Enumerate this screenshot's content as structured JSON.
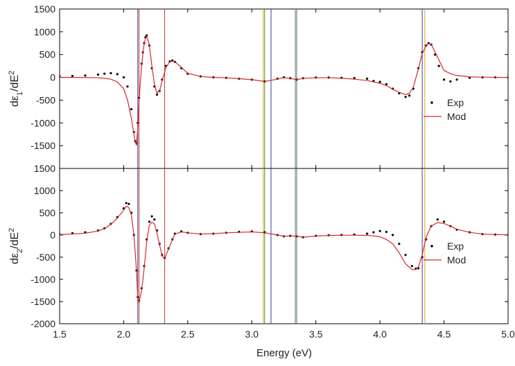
{
  "chart_data": {
    "type": "line",
    "xlabel": "Energy (eV)",
    "xlim": [
      1.5,
      5.0
    ],
    "x_ticks": [
      "1.5",
      "2.0",
      "2.5",
      "3.0",
      "3.5",
      "4.0",
      "4.5",
      "5.0"
    ],
    "colors": {
      "exp": "#000000",
      "mod": "#d62728",
      "vline_blue": "#3b3b9e",
      "vline_red": "#c0392b",
      "vline_orange": "#e8a317",
      "vline_green": "#3c9a3c",
      "vline_purple": "#7b4fa8"
    },
    "vertical_lines": [
      {
        "x": 2.11,
        "color": "#3b3b9e"
      },
      {
        "x": 2.12,
        "color": "#c0392b"
      },
      {
        "x": 2.32,
        "color": "#c0392b"
      },
      {
        "x": 3.09,
        "color": "#e8a317"
      },
      {
        "x": 3.1,
        "color": "#3c9a3c"
      },
      {
        "x": 3.15,
        "color": "#3b3b9e"
      },
      {
        "x": 3.34,
        "color": "#3c9a3c"
      },
      {
        "x": 3.35,
        "color": "#7b4fa8"
      },
      {
        "x": 4.33,
        "color": "#3b3b9e"
      },
      {
        "x": 4.35,
        "color": "#e8a317"
      }
    ],
    "panels": [
      {
        "ylabel": "dε1/dE2",
        "ylim": [
          -2000,
          1500
        ],
        "y_ticks": [
          "1500",
          "1000",
          "500",
          "0",
          "-500",
          "-1000",
          "-1500"
        ],
        "legend": {
          "exp": "Exp",
          "mod": "Mod"
        },
        "series": [
          {
            "name": "Exp",
            "x": [
              1.5,
              1.6,
              1.7,
              1.8,
              1.85,
              1.9,
              1.95,
              2.0,
              2.03,
              2.06,
              2.08,
              2.09,
              2.1,
              2.11,
              2.12,
              2.14,
              2.15,
              2.16,
              2.17,
              2.18,
              2.2,
              2.22,
              2.24,
              2.26,
              2.28,
              2.3,
              2.33,
              2.36,
              2.38,
              2.4,
              2.45,
              2.5,
              2.6,
              2.7,
              2.8,
              2.9,
              3.0,
              3.1,
              3.2,
              3.25,
              3.3,
              3.35,
              3.4,
              3.5,
              3.6,
              3.7,
              3.8,
              3.9,
              3.95,
              4.0,
              4.05,
              4.1,
              4.15,
              4.2,
              4.23,
              4.26,
              4.3,
              4.33,
              4.36,
              4.38,
              4.4,
              4.43,
              4.46,
              4.5,
              4.55,
              4.6,
              4.7,
              4.8,
              4.9,
              5.0
            ],
            "y": [
              20,
              30,
              40,
              60,
              80,
              90,
              70,
              0,
              -200,
              -700,
              -1200,
              -1400,
              -1450,
              -1000,
              -450,
              300,
              550,
              750,
              880,
              920,
              700,
              200,
              -200,
              -380,
              -300,
              -50,
              250,
              350,
              370,
              340,
              200,
              80,
              20,
              0,
              -10,
              -30,
              -50,
              -90,
              -30,
              0,
              -20,
              -50,
              -20,
              -5,
              -5,
              -10,
              -15,
              -30,
              -80,
              -100,
              -150,
              -250,
              -350,
              -430,
              -400,
              -250,
              200,
              550,
              700,
              750,
              720,
              500,
              250,
              -50,
              -90,
              -50,
              -10,
              0,
              0,
              0
            ]
          },
          {
            "name": "Mod",
            "x": [
              1.5,
              1.6,
              1.7,
              1.8,
              1.85,
              1.9,
              1.95,
              2.0,
              2.03,
              2.06,
              2.08,
              2.09,
              2.1,
              2.11,
              2.12,
              2.14,
              2.15,
              2.16,
              2.17,
              2.18,
              2.2,
              2.22,
              2.24,
              2.26,
              2.28,
              2.3,
              2.33,
              2.36,
              2.38,
              2.4,
              2.45,
              2.5,
              2.6,
              2.7,
              2.8,
              2.9,
              3.0,
              3.1,
              3.2,
              3.25,
              3.3,
              3.35,
              3.4,
              3.5,
              3.6,
              3.7,
              3.8,
              3.9,
              3.95,
              4.0,
              4.05,
              4.1,
              4.15,
              4.2,
              4.23,
              4.26,
              4.3,
              4.33,
              4.36,
              4.38,
              4.4,
              4.43,
              4.46,
              4.5,
              4.55,
              4.6,
              4.7,
              4.8,
              4.9,
              5.0
            ],
            "y": [
              0,
              0,
              -5,
              -10,
              -20,
              -40,
              -100,
              -250,
              -500,
              -900,
              -1250,
              -1420,
              -1480,
              -1100,
              -500,
              250,
              520,
              740,
              860,
              900,
              720,
              250,
              -150,
              -350,
              -300,
              -80,
              220,
              340,
              360,
              340,
              220,
              90,
              20,
              0,
              -10,
              -30,
              -50,
              -90,
              -40,
              -5,
              -25,
              -50,
              -25,
              -10,
              -10,
              -20,
              -40,
              -70,
              -100,
              -130,
              -180,
              -260,
              -330,
              -380,
              -350,
              -220,
              180,
              520,
              700,
              740,
              720,
              560,
              380,
              150,
              80,
              40,
              10,
              5,
              0,
              0
            ]
          }
        ]
      },
      {
        "ylabel": "dε2/dE2",
        "ylim": [
          -2000,
          1500
        ],
        "y_ticks": [
          "1500",
          "1000",
          "500",
          "0",
          "-500",
          "-1000",
          "-1500",
          "-2000"
        ],
        "legend": {
          "exp": "Exp",
          "mod": "Mod"
        },
        "series": [
          {
            "name": "Exp",
            "x": [
              1.5,
              1.6,
              1.7,
              1.8,
              1.85,
              1.9,
              1.95,
              2.0,
              2.02,
              2.04,
              2.06,
              2.08,
              2.1,
              2.11,
              2.12,
              2.14,
              2.16,
              2.18,
              2.2,
              2.22,
              2.24,
              2.26,
              2.28,
              2.3,
              2.32,
              2.35,
              2.38,
              2.4,
              2.45,
              2.5,
              2.6,
              2.7,
              2.8,
              2.9,
              3.0,
              3.1,
              3.2,
              3.25,
              3.3,
              3.35,
              3.4,
              3.5,
              3.6,
              3.7,
              3.8,
              3.9,
              3.95,
              4.0,
              4.05,
              4.1,
              4.15,
              4.2,
              4.25,
              4.28,
              4.3,
              4.33,
              4.36,
              4.4,
              4.45,
              4.5,
              4.55,
              4.6,
              4.7,
              4.8,
              4.9,
              5.0
            ],
            "y": [
              20,
              40,
              60,
              100,
              150,
              250,
              400,
              600,
              720,
              700,
              500,
              0,
              -800,
              -1400,
              -1480,
              -1200,
              -700,
              -100,
              300,
              420,
              350,
              100,
              -200,
              -450,
              -520,
              -300,
              -100,
              30,
              80,
              50,
              20,
              30,
              50,
              70,
              80,
              60,
              0,
              -30,
              -20,
              -30,
              -50,
              -20,
              -5,
              0,
              10,
              30,
              60,
              90,
              70,
              0,
              -200,
              -450,
              -700,
              -760,
              -750,
              -500,
              -100,
              200,
              350,
              300,
              200,
              120,
              60,
              20,
              10,
              5
            ]
          },
          {
            "name": "Mod",
            "x": [
              1.5,
              1.6,
              1.7,
              1.8,
              1.85,
              1.9,
              1.95,
              2.0,
              2.02,
              2.04,
              2.06,
              2.08,
              2.1,
              2.11,
              2.12,
              2.14,
              2.16,
              2.18,
              2.2,
              2.22,
              2.24,
              2.26,
              2.28,
              2.3,
              2.32,
              2.35,
              2.38,
              2.4,
              2.45,
              2.5,
              2.6,
              2.7,
              2.8,
              2.9,
              3.0,
              3.1,
              3.2,
              3.25,
              3.3,
              3.35,
              3.4,
              3.5,
              3.6,
              3.7,
              3.8,
              3.9,
              3.95,
              4.0,
              4.05,
              4.1,
              4.15,
              4.2,
              4.25,
              4.28,
              4.3,
              4.33,
              4.36,
              4.4,
              4.45,
              4.5,
              4.55,
              4.6,
              4.7,
              4.8,
              4.9,
              5.0
            ],
            "y": [
              10,
              20,
              40,
              90,
              140,
              240,
              380,
              560,
              650,
              620,
              450,
              0,
              -800,
              -1450,
              -1520,
              -1250,
              -750,
              -150,
              220,
              290,
              250,
              50,
              -220,
              -470,
              -530,
              -320,
              -100,
              20,
              70,
              50,
              20,
              30,
              50,
              60,
              70,
              50,
              0,
              -30,
              -20,
              -30,
              -50,
              -25,
              -10,
              -5,
              -5,
              -10,
              -20,
              -40,
              -100,
              -200,
              -400,
              -650,
              -780,
              -780,
              -720,
              -450,
              -50,
              200,
              280,
              260,
              200,
              130,
              60,
              20,
              10,
              5
            ]
          }
        ]
      }
    ]
  }
}
